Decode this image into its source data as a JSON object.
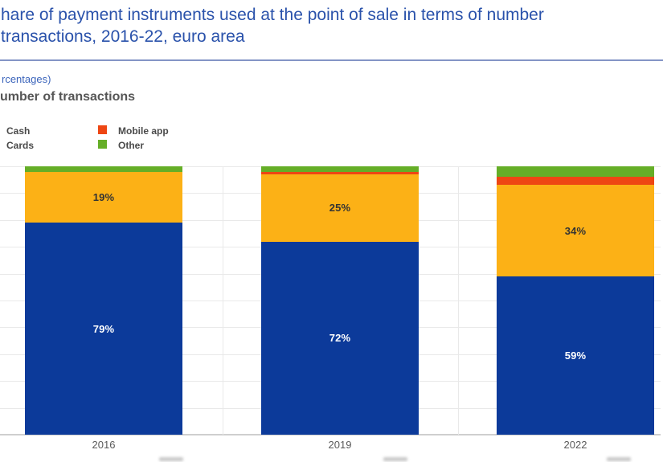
{
  "header": {
    "title_line1": "hare of payment instruments used at the point of sale in terms of number",
    "title_line2": "transactions, 2016-22, euro area",
    "units_note": "rcentages)",
    "panel_heading": "umber of transactions"
  },
  "legend": {
    "items": [
      {
        "label": "Cash",
        "color": "#0c3a9a",
        "swatch_visible": false
      },
      {
        "label": "Cards",
        "color": "#fcb116",
        "swatch_visible": false
      },
      {
        "label": "Mobile app",
        "color": "#ee4613",
        "swatch_visible": true
      },
      {
        "label": "Other",
        "color": "#65ae27",
        "swatch_visible": true
      }
    ]
  },
  "chart_data": {
    "type": "bar",
    "stacked": true,
    "title": "umber of transactions",
    "categories": [
      "2016",
      "2019",
      "2022"
    ],
    "series": [
      {
        "name": "Cash",
        "color": "#0c3a9a",
        "values": [
          79,
          72,
          59
        ],
        "labels": [
          "79%",
          "72%",
          "59%"
        ],
        "label_color": "#ffffff"
      },
      {
        "name": "Cards",
        "color": "#fcb116",
        "values": [
          19,
          25,
          34
        ],
        "labels": [
          "19%",
          "25%",
          "34%"
        ],
        "label_color": "#333333"
      },
      {
        "name": "Mobile app",
        "color": "#ee4613",
        "values": [
          0,
          1,
          3
        ]
      },
      {
        "name": "Other",
        "color": "#65ae27",
        "values": [
          2,
          2,
          4
        ]
      }
    ],
    "ylim": [
      0,
      100
    ],
    "grid": {
      "horizontal": true,
      "horizontal_step": 10,
      "vertical_between_categories": true
    },
    "legend_position": "top-left"
  },
  "colors": {
    "title_text": "#2a52ab",
    "divider": "#8495c6",
    "gridline": "#e9e9e9",
    "axis_line": "#cfcfcf",
    "category_label": "#5a5a5a"
  }
}
